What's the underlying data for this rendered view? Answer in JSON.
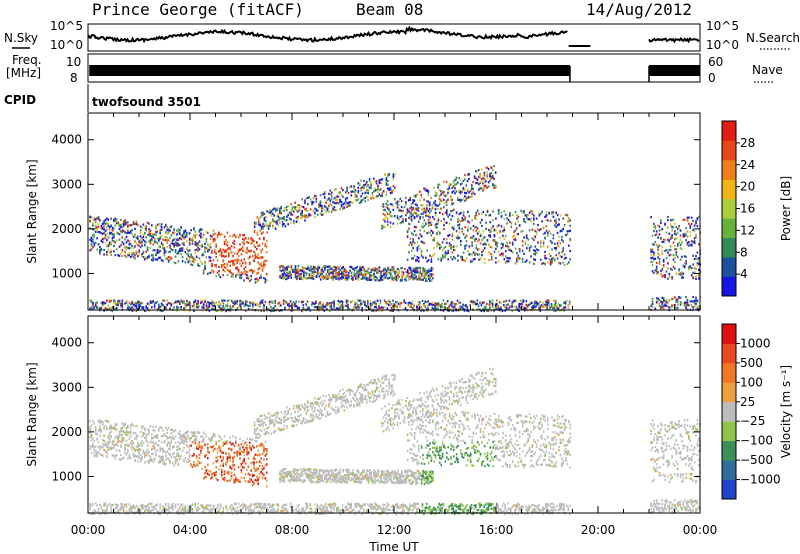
{
  "header": {
    "station": "Prince George (fitACF)",
    "beam": "Beam 08",
    "date": "14/Aug/2012"
  },
  "summary": {
    "nsky_label": "N.Sky",
    "nsearch_label": "N.Search",
    "freq_label_line1": "Freq.",
    "freq_label_line2": "[MHz]",
    "nave_label": "Nave",
    "cpid_label": "CPID",
    "cpid_value": "twofsound 3501",
    "noise_ticks_left": [
      "10^5",
      "10^0"
    ],
    "noise_ticks_right": [
      "10^5",
      "10^0"
    ],
    "freq_ticks": [
      "10",
      "8"
    ],
    "nave_ticks": [
      "60",
      "0"
    ]
  },
  "chart_data": [
    {
      "type": "heatmap",
      "name": "power-panel",
      "ylabel": "Slant Range [km]",
      "ylim": [
        180,
        4600
      ],
      "yticks": [
        "4000",
        "3000",
        "2000",
        "1000"
      ],
      "xlim_hours": [
        0,
        24
      ],
      "colorbar_label": "Power [dB]",
      "colorbar_ticks": [
        "28",
        "24",
        "20",
        "16",
        "12",
        "8",
        "4"
      ],
      "colors": [
        "#1515e6",
        "#1f4f9f",
        "#2f8a5a",
        "#66b33b",
        "#a8cf3a",
        "#f2b316",
        "#f07d17",
        "#e84818",
        "#e01e14"
      ],
      "data_gaps_hours": [
        [
          18.9,
          22.0
        ]
      ]
    },
    {
      "type": "heatmap",
      "name": "velocity-panel",
      "ylabel": "Slant Range [km]",
      "ylim": [
        180,
        4600
      ],
      "yticks": [
        "4000",
        "3000",
        "2000",
        "1000"
      ],
      "xlim_hours": [
        0,
        24
      ],
      "xticks": [
        "00:00",
        "04:00",
        "08:00",
        "12:00",
        "16:00",
        "20:00",
        "00:00"
      ],
      "xlabel": "Time UT",
      "colorbar_label": "Velocity [m s⁻¹]",
      "colorbar_ticks": [
        "1000",
        "500",
        "100",
        "25",
        "−25",
        "−100",
        "−500",
        "−1000"
      ],
      "colors": [
        "#2244cc",
        "#2d6e9a",
        "#3d8f5a",
        "#8fc44a",
        "#bcbcbc",
        "#f0a040",
        "#f07820",
        "#e84820",
        "#e01010"
      ],
      "data_gaps_hours": [
        [
          18.9,
          22.0
        ]
      ]
    }
  ]
}
